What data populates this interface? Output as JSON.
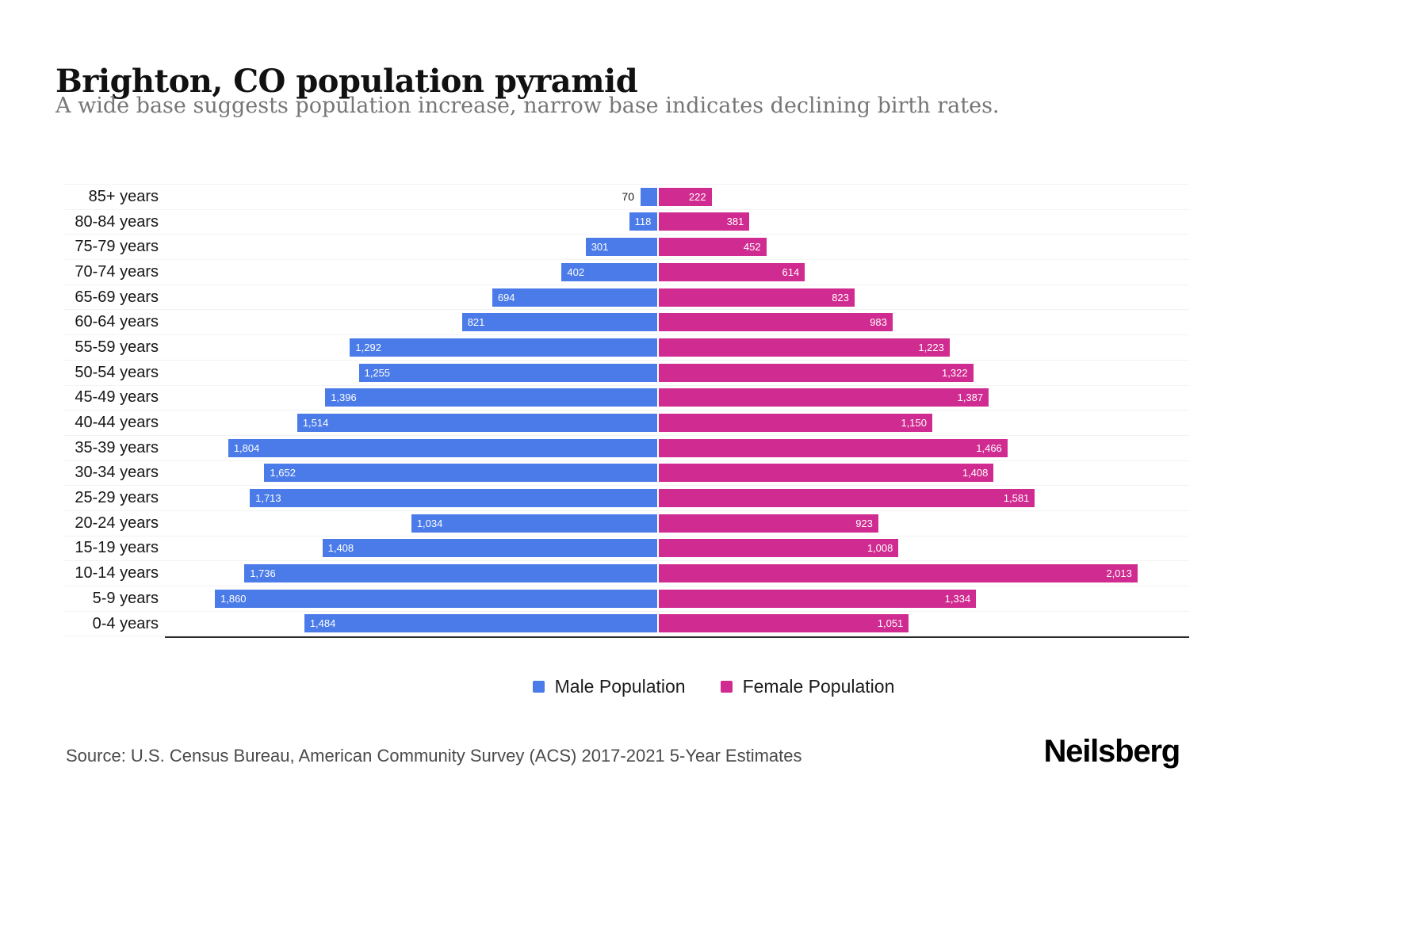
{
  "page": {
    "title": "Brighton, CO population pyramid",
    "subtitle": "A wide base suggests population increase, narrow base indicates declining birth rates.",
    "source": "Source: U.S. Census Bureau, American Community Survey (ACS) 2017-2021 5-Year Estimates",
    "brand": "Neilsberg"
  },
  "colors": {
    "male": "#4B7BE8",
    "female": "#D02B90"
  },
  "legend": {
    "male_label": "Male Population",
    "female_label": "Female Population"
  },
  "chart_data": {
    "type": "bar",
    "subtype": "population-pyramid",
    "title": "Brighton, CO population pyramid",
    "categories": [
      "85+ years",
      "80-84 years",
      "75-79 years",
      "70-74 years",
      "65-69 years",
      "60-64 years",
      "55-59 years",
      "50-54 years",
      "45-49 years",
      "40-44 years",
      "35-39 years",
      "30-34 years",
      "25-29 years",
      "20-24 years",
      "15-19 years",
      "10-14 years",
      "5-9 years",
      "0-4 years"
    ],
    "series": [
      {
        "name": "Male Population",
        "side": "left",
        "color": "#4B7BE8",
        "values": [
          70,
          118,
          301,
          402,
          694,
          821,
          1292,
          1255,
          1396,
          1514,
          1804,
          1652,
          1713,
          1034,
          1408,
          1736,
          1860,
          1484
        ]
      },
      {
        "name": "Female Population",
        "side": "right",
        "color": "#D02B90",
        "values": [
          222,
          381,
          452,
          614,
          823,
          983,
          1223,
          1322,
          1387,
          1150,
          1466,
          1408,
          1581,
          923,
          1008,
          2013,
          1334,
          1051
        ]
      }
    ],
    "value_labels": "on-bar, comma-formatted, white inside bars; outside in black when bar too short",
    "xlim_each_side": [
      0,
      2100
    ],
    "grid": "faint horizontal lines per row",
    "legend_position": "bottom-center"
  }
}
